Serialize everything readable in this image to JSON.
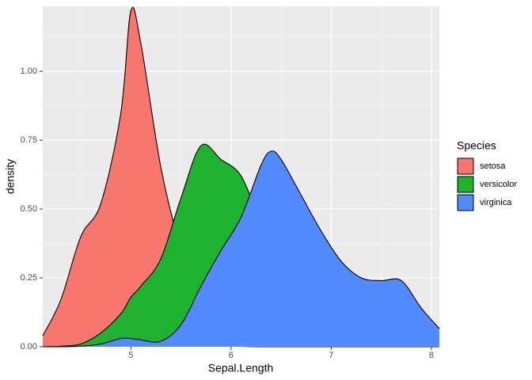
{
  "chart_data": {
    "type": "density",
    "x_label": "Sepal.Length",
    "y_label": "density",
    "legend_title": "Species",
    "legend_position": "right",
    "x": [
      4.12,
      4.3,
      4.5,
      4.7,
      4.9,
      5.0,
      5.1,
      5.3,
      5.5,
      5.7,
      5.9,
      6.1,
      6.3,
      6.4,
      6.5,
      6.7,
      6.9,
      7.1,
      7.3,
      7.5,
      7.7,
      7.9,
      8.08
    ],
    "series": [
      {
        "name": "setosa",
        "color": "#f8766d",
        "values": [
          0.04,
          0.17,
          0.4,
          0.52,
          0.85,
          1.22,
          1.1,
          0.65,
          0.35,
          0.1,
          0.02,
          0.002,
          0,
          0,
          0,
          0,
          0,
          0,
          0,
          0,
          0,
          0,
          0
        ]
      },
      {
        "name": "versicolor",
        "color": "#1eb22e",
        "values": [
          0,
          0.002,
          0.01,
          0.05,
          0.12,
          0.18,
          0.22,
          0.32,
          0.54,
          0.73,
          0.68,
          0.62,
          0.45,
          0.38,
          0.3,
          0.15,
          0.06,
          0.02,
          0.005,
          0,
          0,
          0,
          0
        ]
      },
      {
        "name": "virginica",
        "color": "#518bff",
        "values": [
          0,
          0,
          0.002,
          0.01,
          0.03,
          0.03,
          0.025,
          0.02,
          0.08,
          0.22,
          0.35,
          0.47,
          0.66,
          0.71,
          0.68,
          0.55,
          0.42,
          0.31,
          0.25,
          0.24,
          0.24,
          0.14,
          0.066
        ]
      }
    ],
    "xlim": [
      4.12,
      8.08
    ],
    "xticks": [
      5,
      6,
      7,
      8
    ],
    "ylim": [
      0,
      1.236
    ],
    "yticks": [
      {
        "value": 0,
        "label": "0.00"
      },
      {
        "value": 0.25,
        "label": "0.25"
      },
      {
        "value": 0.5,
        "label": "0.50"
      },
      {
        "value": 0.75,
        "label": "0.75"
      },
      {
        "value": 1,
        "label": "1.00"
      }
    ],
    "grid": true,
    "minor_grid": true
  }
}
